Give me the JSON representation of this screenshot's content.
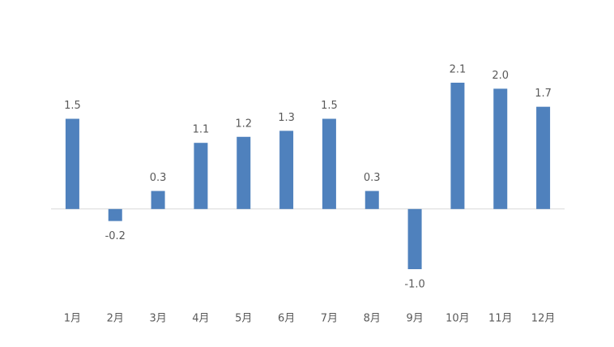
{
  "chart_data": {
    "type": "bar",
    "categories": [
      "1月",
      "2月",
      "3月",
      "4月",
      "5月",
      "6月",
      "7月",
      "8月",
      "9月",
      "10月",
      "11月",
      "12月"
    ],
    "values": [
      1.5,
      -0.2,
      0.3,
      1.1,
      1.2,
      1.3,
      1.5,
      0.3,
      -1.0,
      2.1,
      2.0,
      1.7
    ],
    "value_labels": [
      "1.5",
      "-0.2",
      "0.3",
      "1.1",
      "1.2",
      "1.3",
      "1.5",
      "0.3",
      "-1.0",
      "2.1",
      "2.0",
      "1.7"
    ],
    "color": "#4f81bd"
  }
}
